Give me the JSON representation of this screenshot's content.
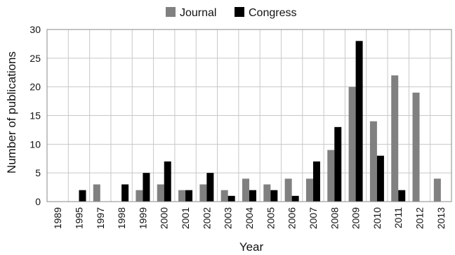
{
  "chart_data": {
    "type": "bar",
    "categories": [
      "1989",
      "1995",
      "1997",
      "1998",
      "1999",
      "2000",
      "2001",
      "2002",
      "2003",
      "2004",
      "2005",
      "2006",
      "2007",
      "2008",
      "2009",
      "2010",
      "2011",
      "2012",
      "2013"
    ],
    "series": [
      {
        "name": "Journal",
        "color": "#808080",
        "values": [
          0,
          0,
          3,
          0,
          2,
          3,
          2,
          3,
          2,
          4,
          3,
          4,
          4,
          9,
          20,
          14,
          22,
          19,
          4
        ]
      },
      {
        "name": "Congress",
        "color": "#000000",
        "values": [
          0,
          2,
          0,
          3,
          5,
          7,
          2,
          5,
          1,
          2,
          2,
          1,
          7,
          13,
          28,
          8,
          2,
          0,
          0
        ]
      }
    ],
    "title": "",
    "xlabel": "Year",
    "ylabel": "Number of publications",
    "ylim": [
      0,
      30
    ],
    "yticks": [
      0,
      5,
      10,
      15,
      20,
      25,
      30
    ],
    "grid": true,
    "legend_position": "top-center"
  }
}
